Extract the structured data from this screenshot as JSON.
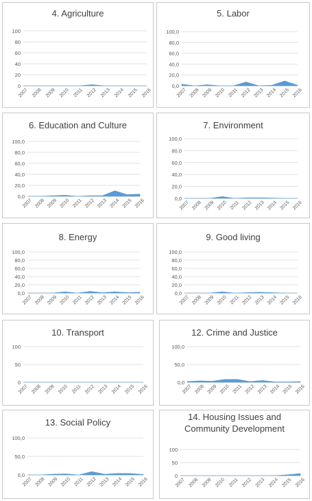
{
  "chart_data": [
    {
      "type": "area",
      "title": "4. Agriculture",
      "categories": [
        "2007",
        "2008",
        "2009",
        "2010",
        "2011",
        "2012",
        "2013",
        "2014",
        "2015",
        "2016"
      ],
      "values": [
        0,
        0,
        0,
        0,
        0,
        2,
        0,
        0,
        0,
        0
      ],
      "yticks": [
        "0",
        "20",
        "40",
        "60",
        "80",
        "100"
      ],
      "ylim": [
        0,
        100
      ],
      "color": "#5b9bd5"
    },
    {
      "type": "area",
      "title": "5. Labor",
      "categories": [
        "2007",
        "2008",
        "2009",
        "2010",
        "2011",
        "2012",
        "2013",
        "2014",
        "2015",
        "2016"
      ],
      "values": [
        3,
        0,
        2,
        0,
        0,
        7,
        0,
        1,
        9,
        1
      ],
      "yticks": [
        "0,0",
        "20,0",
        "40,0",
        "60,0",
        "80,0",
        "100,0"
      ],
      "ylim": [
        0,
        100
      ],
      "color": "#5b9bd5"
    },
    {
      "type": "area",
      "title": "6. Education and Culture",
      "categories": [
        "2007",
        "2008",
        "2009",
        "2010",
        "2011",
        "2012",
        "2013",
        "2014",
        "2015",
        "2016"
      ],
      "values": [
        0,
        0,
        1,
        2,
        0,
        1,
        1,
        10,
        3,
        4
      ],
      "yticks": [
        "0,0",
        "20,0",
        "40,0",
        "60,0",
        "80,0",
        "100,0"
      ],
      "ylim": [
        0,
        100
      ],
      "color": "#5b9bd5"
    },
    {
      "type": "area",
      "title": "7. Environment",
      "categories": [
        "2007",
        "2008",
        "2009",
        "2010",
        "2011",
        "2012",
        "2013",
        "2014",
        "2015",
        "2016"
      ],
      "values": [
        0,
        0,
        0,
        3,
        0,
        1,
        1,
        0.5,
        0,
        0
      ],
      "yticks": [
        "0,0",
        "20,0",
        "40,0",
        "60,0",
        "80,0",
        "100,0"
      ],
      "ylim": [
        0,
        100
      ],
      "color": "#5b9bd5"
    },
    {
      "type": "area",
      "title": "8. Energy",
      "categories": [
        "2007",
        "2008",
        "2009",
        "2010",
        "2011",
        "2012",
        "2013",
        "2014",
        "2015",
        "2016"
      ],
      "values": [
        0,
        0,
        0,
        3,
        0,
        4,
        1,
        3,
        1,
        2
      ],
      "yticks": [
        "0,0",
        "20,0",
        "40,0",
        "60,0",
        "80,0",
        "100,0"
      ],
      "ylim": [
        0,
        100
      ],
      "color": "#5b9bd5"
    },
    {
      "type": "area",
      "title": "9. Good living",
      "categories": [
        "2007",
        "2008",
        "2009",
        "2010",
        "2011",
        "2012",
        "2013",
        "2014",
        "2015",
        "2016"
      ],
      "values": [
        0,
        0,
        0,
        3,
        0,
        1,
        2,
        1,
        0,
        0
      ],
      "yticks": [
        "0,0",
        "20,0",
        "40,0",
        "60,0",
        "80,0",
        "100,0"
      ],
      "ylim": [
        0,
        100
      ],
      "color": "#5b9bd5"
    },
    {
      "type": "area",
      "title": "10. Transport",
      "categories": [
        "2007",
        "2008",
        "2009",
        "2010",
        "2011",
        "2012",
        "2013",
        "2014",
        "2015",
        "2016"
      ],
      "values": [
        0,
        0,
        0,
        0,
        0,
        0,
        0,
        0,
        0,
        0
      ],
      "yticks": [
        "0",
        "50",
        "100"
      ],
      "ylim": [
        0,
        100
      ],
      "color": "#5b9bd5"
    },
    {
      "type": "area",
      "title": "12. Crime and Justice",
      "categories": [
        "2007",
        "2008",
        "2009",
        "2010",
        "2011",
        "2012",
        "2013",
        "2014",
        "2015",
        "2016"
      ],
      "values": [
        2,
        4,
        3,
        8,
        8,
        2,
        5,
        1,
        1,
        2
      ],
      "yticks": [
        "0,0",
        "50,0",
        "100,0"
      ],
      "ylim": [
        0,
        100
      ],
      "color": "#5b9bd5"
    },
    {
      "type": "area",
      "title": "13. Social Policy",
      "categories": [
        "2007",
        "2008",
        "2009",
        "2010",
        "2011",
        "2012",
        "2013",
        "2014",
        "2015",
        "2016"
      ],
      "values": [
        0,
        0,
        2,
        3,
        0,
        9,
        2,
        4,
        4,
        1
      ],
      "yticks": [
        "0,0",
        "50,0",
        "100,0"
      ],
      "ylim": [
        0,
        100
      ],
      "color": "#5b9bd5"
    },
    {
      "type": "area",
      "title": "14. Housing Issues and Community Development",
      "title_lines": [
        "14. Housing Issues and",
        "Community Development"
      ],
      "categories": [
        "2007",
        "2008",
        "2009",
        "2010",
        "2011",
        "2012",
        "2013",
        "2014",
        "2015",
        "2016"
      ],
      "values": [
        0,
        0,
        0,
        0,
        0,
        0,
        0,
        0,
        3,
        8
      ],
      "yticks": [
        "0",
        "50",
        "100"
      ],
      "ylim": [
        0,
        100
      ],
      "color": "#5b9bd5"
    }
  ]
}
